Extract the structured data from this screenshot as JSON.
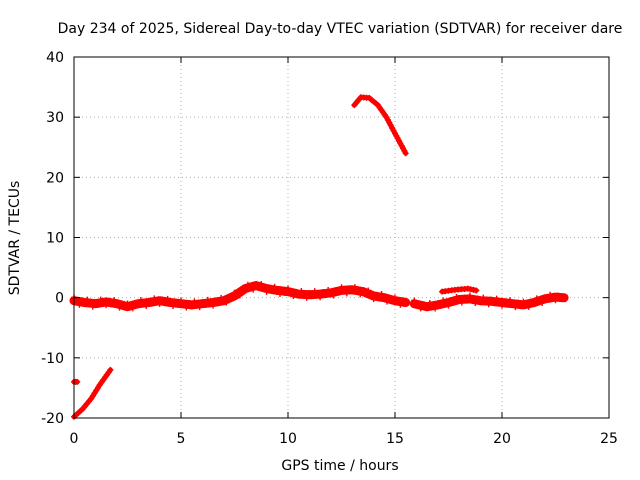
{
  "chart_data": {
    "type": "line",
    "title": "Day 234 of 2025, Sidereal Day-to-day VTEC variation (SDTVAR) for receiver dare",
    "xlabel": "GPS time / hours",
    "ylabel": "SDTVAR / TECUs",
    "xlim": [
      0,
      25
    ],
    "ylim": [
      -20,
      40
    ],
    "xticks": [
      0,
      5,
      10,
      15,
      20,
      25
    ],
    "yticks": [
      -20,
      -10,
      0,
      10,
      20,
      30,
      40
    ],
    "grid": true,
    "legend": "none",
    "color": "#ff0000",
    "series": [
      {
        "name": "main band",
        "band": true,
        "x": [
          0,
          0.5,
          1,
          1.5,
          2,
          2.5,
          3,
          3.5,
          4,
          4.5,
          5,
          5.5,
          6,
          6.5,
          7,
          7.5,
          8,
          8.5,
          9,
          9.5,
          10,
          10.5,
          11,
          11.5,
          12,
          12.5,
          13,
          13.5,
          14,
          14.5,
          15,
          15.5
        ],
        "y": [
          -0.5,
          -0.8,
          -1.0,
          -0.7,
          -1.0,
          -1.5,
          -1.0,
          -0.8,
          -0.5,
          -0.8,
          -1.0,
          -1.2,
          -1.0,
          -0.8,
          -0.5,
          0.3,
          1.5,
          2.0,
          1.5,
          1.2,
          1.0,
          0.6,
          0.5,
          0.6,
          0.8,
          1.2,
          1.3,
          1.0,
          0.3,
          0.0,
          -0.5,
          -0.8
        ]
      },
      {
        "name": "arc low",
        "band": false,
        "x": [
          0,
          0.4,
          0.8,
          1.2,
          1.7
        ],
        "y": [
          -19.8,
          -18.5,
          -16.8,
          -14.5,
          -12.0
        ]
      },
      {
        "name": "dot",
        "band": false,
        "x": [
          0.0,
          0.15
        ],
        "y": [
          -14.0,
          -14.0
        ]
      },
      {
        "name": "arc high",
        "band": false,
        "x": [
          13.1,
          13.4,
          13.8,
          14.2,
          14.6,
          15.0,
          15.5
        ],
        "y": [
          32.0,
          33.3,
          33.2,
          32.0,
          30.0,
          27.3,
          24.0
        ]
      },
      {
        "name": "band right",
        "band": true,
        "x": [
          15.9,
          16.5,
          17.0,
          17.5,
          18.0,
          18.5,
          19.0,
          19.5,
          20.0,
          20.5,
          21.0,
          21.5,
          22.0,
          22.5,
          22.9
        ],
        "y": [
          -1.0,
          -1.5,
          -1.2,
          -0.8,
          -0.3,
          -0.2,
          -0.5,
          -0.6,
          -0.8,
          -1.0,
          -1.2,
          -0.8,
          -0.2,
          0.1,
          0.0
        ]
      },
      {
        "name": "short arc",
        "band": false,
        "x": [
          17.2,
          17.8,
          18.4,
          18.8
        ],
        "y": [
          1.0,
          1.3,
          1.5,
          1.2
        ]
      }
    ]
  }
}
